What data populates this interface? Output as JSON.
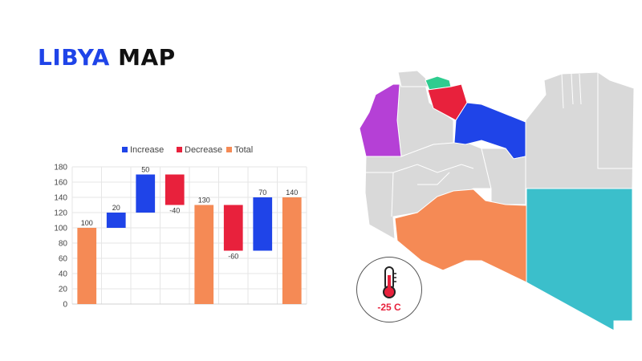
{
  "title": {
    "word1": "LIBYA",
    "word2": "MAP"
  },
  "colors": {
    "increase": "#1f44e8",
    "decrease": "#e8213c",
    "total": "#f58a55",
    "map_gray": "#d9d9d9",
    "map_teal": "#3bbfcb",
    "map_green": "#2ecc8f",
    "map_purple": "#b540d6",
    "title_blue": "#1f44e8",
    "temp_red": "#e8213c"
  },
  "temperature": {
    "label": "-25 C",
    "icon": "thermometer-icon"
  },
  "chart_data": {
    "type": "bar",
    "subtype": "waterfall",
    "legend": [
      "Increase",
      "Decrease",
      "Total"
    ],
    "legend_position": "top",
    "ylim": [
      0,
      180
    ],
    "yticks": [
      0,
      20,
      40,
      60,
      80,
      100,
      120,
      140,
      160,
      180
    ],
    "grid": true,
    "bars": [
      {
        "kind": "Total",
        "start": 0,
        "end": 100,
        "label": "100"
      },
      {
        "kind": "Increase",
        "start": 100,
        "end": 120,
        "label": "20"
      },
      {
        "kind": "Increase",
        "start": 120,
        "end": 170,
        "label": "50"
      },
      {
        "kind": "Decrease",
        "start": 170,
        "end": 130,
        "label": "-40"
      },
      {
        "kind": "Total",
        "start": 0,
        "end": 130,
        "label": "130"
      },
      {
        "kind": "Decrease",
        "start": 130,
        "end": 70,
        "label": "-60"
      },
      {
        "kind": "Increase",
        "start": 70,
        "end": 140,
        "label": "70"
      },
      {
        "kind": "Total",
        "start": 0,
        "end": 140,
        "label": "140"
      }
    ]
  }
}
